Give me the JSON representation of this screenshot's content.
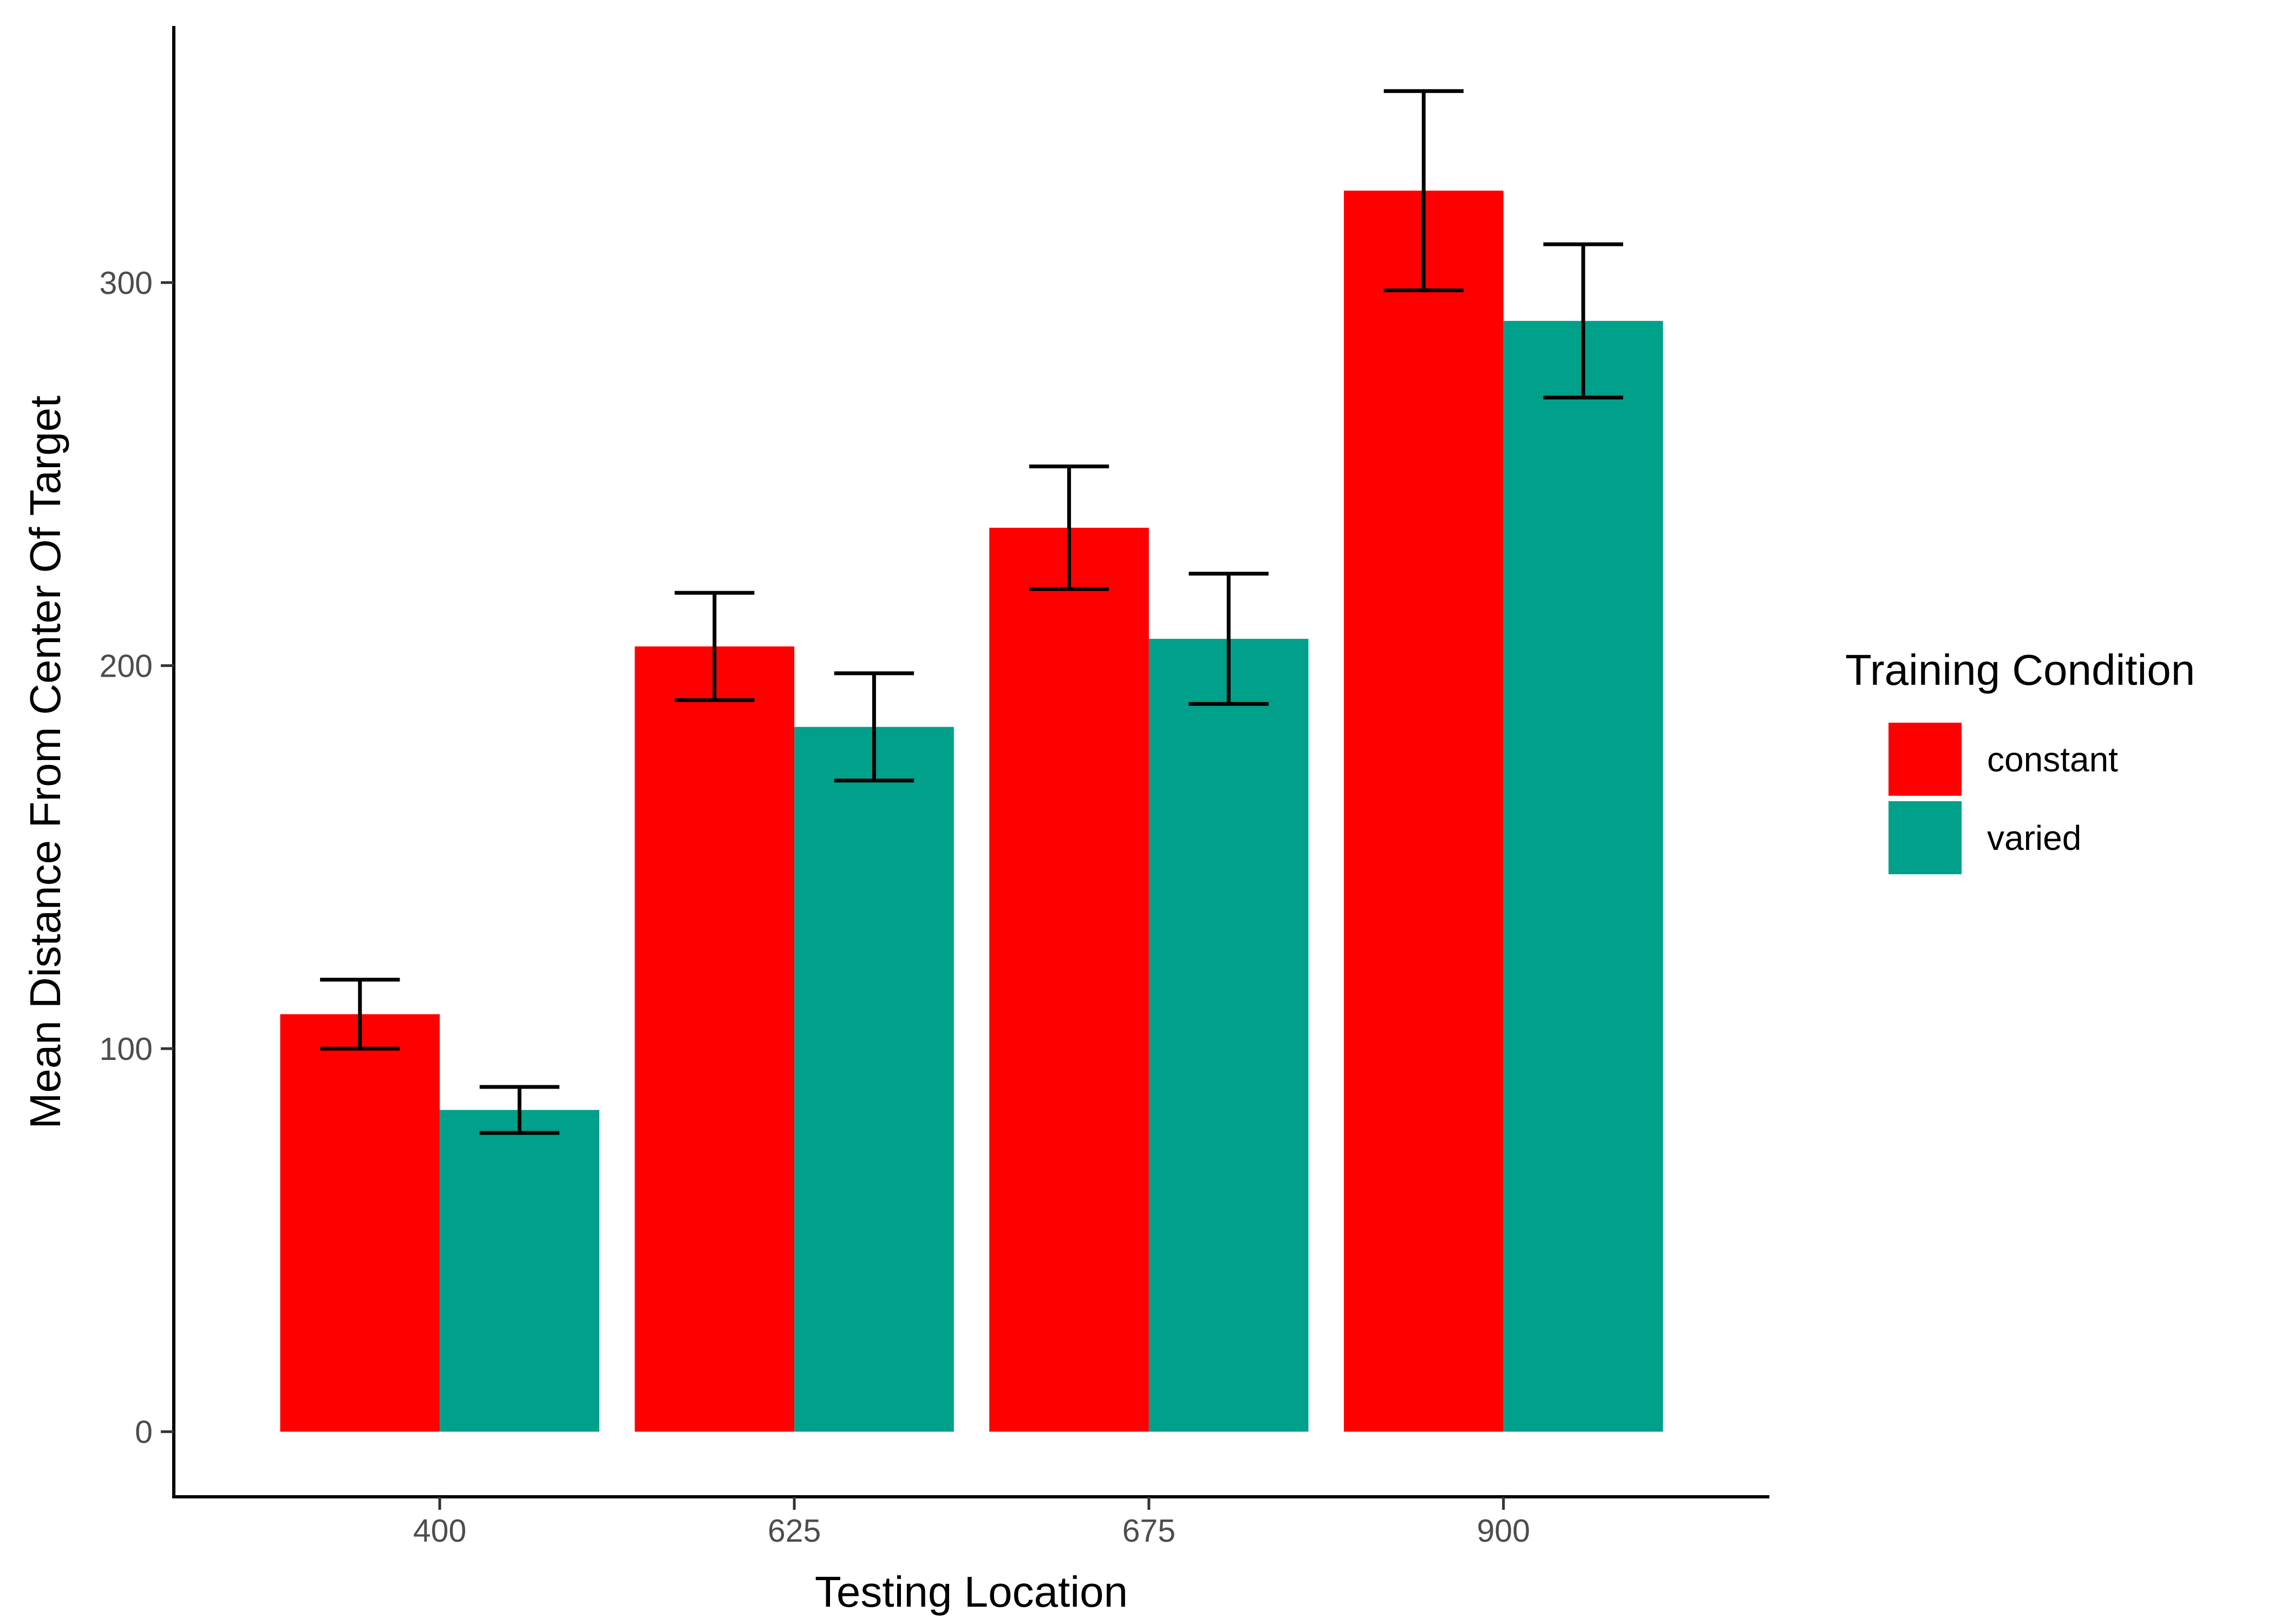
{
  "chart_data": {
    "type": "bar",
    "xlabel": "Testing Location",
    "ylabel": "Mean Distance From Center Of Target",
    "categories": [
      "400",
      "625",
      "675",
      "900"
    ],
    "ylim": [
      -17,
      367
    ],
    "yticks": [
      0,
      100,
      200,
      300
    ],
    "grid": false,
    "legend": {
      "title": "Training Condition",
      "position": "right"
    },
    "series": [
      {
        "name": "constant",
        "color": "#FF0000",
        "values": [
          109,
          205,
          236,
          324
        ],
        "error_low": [
          100,
          191,
          220,
          298
        ],
        "error_high": [
          118,
          219,
          252,
          350
        ]
      },
      {
        "name": "varied",
        "color": "#00A08A",
        "values": [
          84,
          184,
          207,
          290
        ],
        "error_low": [
          78,
          170,
          190,
          270
        ],
        "error_high": [
          90,
          198,
          224,
          310
        ]
      }
    ]
  }
}
